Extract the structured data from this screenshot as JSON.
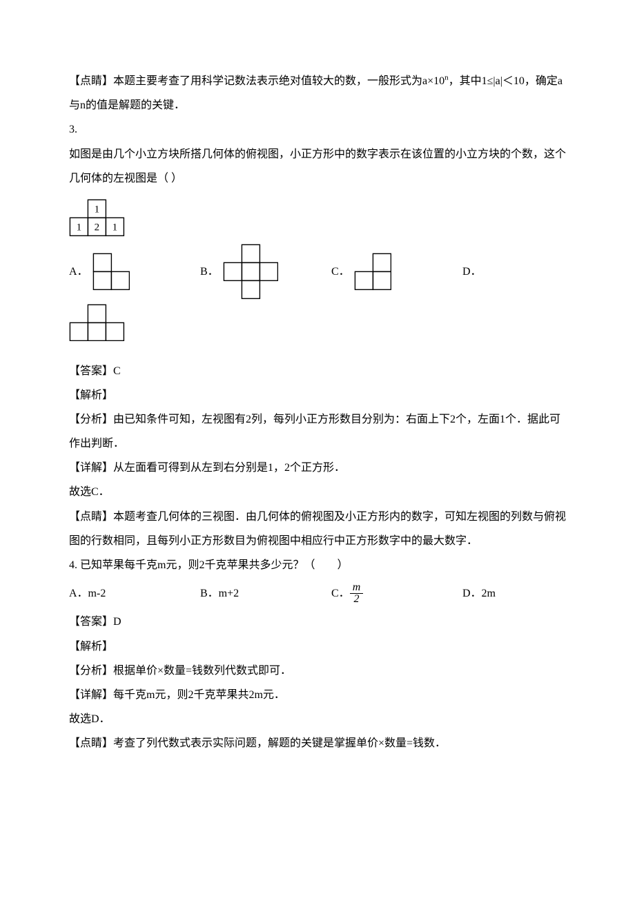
{
  "q2_tip": "【点睛】本题主要考查了用科学记数法表示绝对值较大的数，一般形式为a×10",
  "q2_tip_sup": "n",
  "q2_tip_tail": "，其中1≤|a|＜10，确定a与n的值是解题的关键．",
  "q3_num": "3.",
  "q3_stem1": "如图是由几个小立方块所搭几何体的俯视图，小正方形中的数字表示在该位置的小立方块的个数，这个几何体的左视图是（  ）",
  "top_grid": {
    "cell": 26,
    "stroke": "#000000",
    "stroke_w": 1.4,
    "cells": [
      {
        "r": 0,
        "c": 1,
        "t": "1"
      },
      {
        "r": 1,
        "c": 0,
        "t": "1"
      },
      {
        "r": 1,
        "c": 1,
        "t": "2"
      },
      {
        "r": 1,
        "c": 2,
        "t": "1"
      }
    ]
  },
  "opts3": {
    "labels": {
      "A": "A．",
      "B": "B．",
      "C": "C．",
      "D": "D．"
    },
    "cell": 26,
    "stroke": "#000000",
    "stroke_w": 1.4,
    "A_cells": [
      {
        "r": 0,
        "c": 0
      },
      {
        "r": 1,
        "c": 0
      },
      {
        "r": 1,
        "c": 1
      }
    ],
    "B_cells": [
      {
        "r": 0,
        "c": 1
      },
      {
        "r": 1,
        "c": 0
      },
      {
        "r": 1,
        "c": 1
      },
      {
        "r": 1,
        "c": 2
      },
      {
        "r": 2,
        "c": 1
      }
    ],
    "C_cells": [
      {
        "r": 0,
        "c": 1
      },
      {
        "r": 1,
        "c": 0
      },
      {
        "r": 1,
        "c": 1
      }
    ],
    "D_cells": [
      {
        "r": 0,
        "c": 1
      },
      {
        "r": 1,
        "c": 0
      },
      {
        "r": 1,
        "c": 1
      },
      {
        "r": 1,
        "c": 2
      }
    ],
    "gapA": 190,
    "gapB": 190,
    "gapC": 190
  },
  "q3_ans": "【答案】C",
  "q3_jiexi": "【解析】",
  "q3_fenxi": "【分析】由已知条件可知，左视图有2列，每列小正方形数目分别为：右面上下2个，左面1个．据此可作出判断．",
  "q3_detail": "【详解】从左面看可得到从左到右分别是1，2个正方形．",
  "q3_so": "故选C．",
  "q3_tip": "【点睛】本题考查几何体的三视图．由几何体的俯视图及小正方形内的数字，可知左视图的列数与俯视图的行数相同，且每列小正方形数目为俯视图中相应行中正方形数字中的最大数字．",
  "q4_stem": "4. 已知苹果每千克m元，则2千克苹果共多少元？（　　）",
  "q4": {
    "A_pre": "A．m-2",
    "B_pre": "B．m+2",
    "C_pre": "C．",
    "C_frac_num": "m",
    "C_frac_den": "2",
    "D_pre": "D．2m",
    "colA": 190,
    "colB": 190,
    "colC": 190
  },
  "q4_ans": "【答案】D",
  "q4_jiexi": "【解析】",
  "q4_fenxi": "【分析】根据单价×数量=钱数列代数式即可．",
  "q4_detail": "【详解】每千克m元，则2千克苹果共2m元．",
  "q4_so": "故选D．",
  "q4_tip": "【点睛】考查了列代数式表示实际问题，解题的关键是掌握单价×数量=钱数．"
}
